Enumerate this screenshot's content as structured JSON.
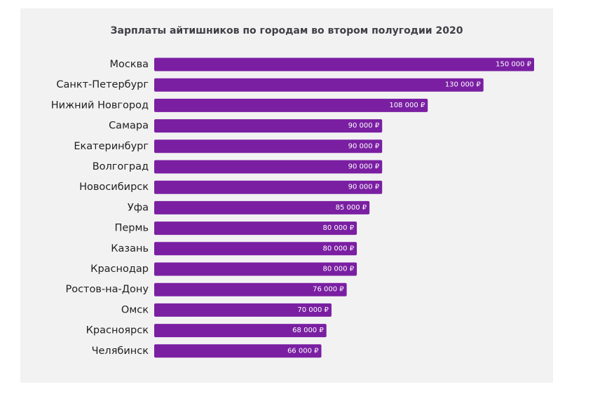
{
  "chart_data": {
    "type": "bar",
    "orientation": "horizontal",
    "title": "Зарплаты айтишников по городам во втором полугодии 2020",
    "categories": [
      "Москва",
      "Санкт-Петербург",
      "Нижний Новгород",
      "Самара",
      "Екатеринбург",
      "Волгоград",
      "Новосибирск",
      "Уфа",
      "Пермь",
      "Казань",
      "Краснодар",
      "Ростов-на-Дону",
      "Омск",
      "Красноярск",
      "Челябинск"
    ],
    "values": [
      150000,
      130000,
      108000,
      90000,
      90000,
      90000,
      90000,
      85000,
      80000,
      80000,
      80000,
      76000,
      70000,
      68000,
      66000
    ],
    "data_labels": [
      "150 000 ₽",
      "130 000 ₽",
      "108 000 ₽",
      "90 000 ₽",
      "90 000 ₽",
      "90 000 ₽",
      "90 000 ₽",
      "85 000 ₽",
      "80 000 ₽",
      "80 000 ₽",
      "80 000 ₽",
      "76 000 ₽",
      "70 000 ₽",
      "68 000 ₽",
      "66 000 ₽"
    ],
    "xlim": [
      0,
      150000
    ],
    "grid": false,
    "legend": "none",
    "bar_color": "#7a1fa2",
    "background_color": "#f2f2f3"
  }
}
